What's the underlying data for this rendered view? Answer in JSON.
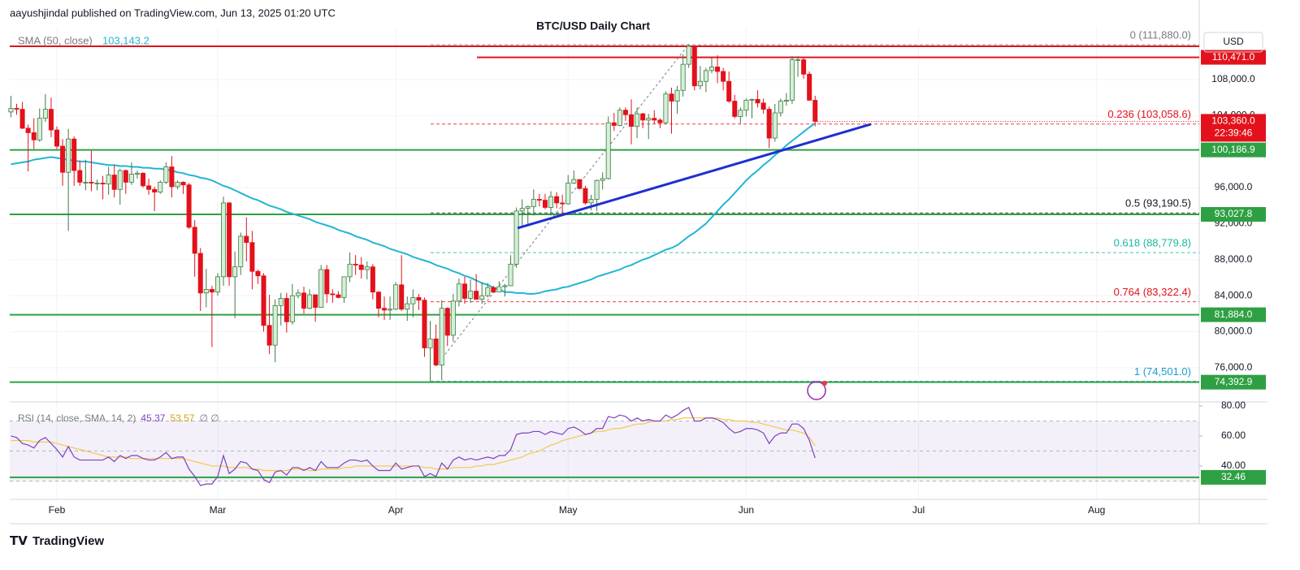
{
  "header": {
    "attribution": "aayushjindal published on TradingView.com, Jun 13, 2025 01:20 UTC",
    "watermark": "TradingView"
  },
  "chart_data": {
    "type": "candlestick",
    "title": "BTC/USD Daily Chart",
    "currency": "USD",
    "up_color": "#d4f0d6",
    "up_stroke": "#3f7a45",
    "down_color": "#e3111b",
    "x_labels": [
      "Feb",
      "Mar",
      "Apr",
      "May",
      "Jun",
      "Jul",
      "Aug"
    ],
    "candles": [
      [
        104400,
        106200,
        103800,
        104800
      ],
      [
        104800,
        105300,
        104100,
        104700
      ],
      [
        104700,
        105500,
        102500,
        102600
      ],
      [
        102600,
        103000,
        97800,
        102100
      ],
      [
        102100,
        103700,
        100300,
        101300
      ],
      [
        101300,
        104800,
        101100,
        103700
      ],
      [
        103700,
        106400,
        103300,
        104700
      ],
      [
        104700,
        106000,
        101600,
        102400
      ],
      [
        102400,
        102800,
        100300,
        100600
      ],
      [
        100600,
        101400,
        96200,
        97700
      ],
      [
        97700,
        102500,
        91200,
        101400
      ],
      [
        101400,
        101700,
        96200,
        97900
      ],
      [
        97900,
        99000,
        96200,
        96600
      ],
      [
        96600,
        99100,
        95700,
        96600
      ],
      [
        96600,
        100100,
        95600,
        96500
      ],
      [
        96500,
        96900,
        95700,
        96500
      ],
      [
        96500,
        97300,
        94700,
        96400
      ],
      [
        96400,
        98300,
        95200,
        97400
      ],
      [
        97400,
        98500,
        94900,
        95800
      ],
      [
        95800,
        98100,
        94100,
        97900
      ],
      [
        97900,
        98000,
        95300,
        96600
      ],
      [
        96600,
        98800,
        96300,
        97500
      ],
      [
        97500,
        97900,
        97000,
        97600
      ],
      [
        97600,
        97700,
        96000,
        96200
      ],
      [
        96200,
        97000,
        95200,
        95800
      ],
      [
        95800,
        96100,
        93400,
        95500
      ],
      [
        95500,
        96800,
        95300,
        96600
      ],
      [
        96600,
        98800,
        96400,
        98300
      ],
      [
        98300,
        99500,
        94900,
        96100
      ],
      [
        96100,
        96800,
        95800,
        96600
      ],
      [
        96600,
        96700,
        95300,
        96300
      ],
      [
        96300,
        96500,
        91400,
        91600
      ],
      [
        91600,
        92400,
        86100,
        88700
      ],
      [
        88700,
        89300,
        82300,
        84300
      ],
      [
        84300,
        87000,
        82700,
        84700
      ],
      [
        84700,
        85100,
        78300,
        84400
      ],
      [
        84400,
        86500,
        84000,
        86100
      ],
      [
        86100,
        95000,
        85100,
        94300
      ],
      [
        94300,
        94400,
        85100,
        86100
      ],
      [
        86100,
        88900,
        81500,
        87200
      ],
      [
        87200,
        91000,
        86300,
        90600
      ],
      [
        90600,
        92700,
        87800,
        89900
      ],
      [
        89900,
        91200,
        84700,
        86700
      ],
      [
        86700,
        86900,
        85300,
        86200
      ],
      [
        86200,
        86500,
        80000,
        80700
      ],
      [
        80700,
        84100,
        77500,
        78500
      ],
      [
        78500,
        83600,
        76600,
        82900
      ],
      [
        82900,
        84300,
        80700,
        83700
      ],
      [
        83700,
        84300,
        79900,
        81100
      ],
      [
        81100,
        85300,
        80800,
        84000
      ],
      [
        84000,
        84700,
        83700,
        84300
      ],
      [
        84300,
        85000,
        82000,
        82600
      ],
      [
        82600,
        84700,
        82500,
        84100
      ],
      [
        84100,
        84100,
        81100,
        82700
      ],
      [
        82700,
        87400,
        82700,
        86900
      ],
      [
        86900,
        87400,
        83200,
        84200
      ],
      [
        84200,
        84700,
        83200,
        84100
      ],
      [
        84100,
        84500,
        83700,
        83800
      ],
      [
        83800,
        86100,
        83200,
        86100
      ],
      [
        86100,
        88800,
        85500,
        87500
      ],
      [
        87500,
        88500,
        86300,
        87400
      ],
      [
        87400,
        88300,
        85900,
        86900
      ],
      [
        86900,
        87800,
        85800,
        87200
      ],
      [
        87200,
        87500,
        83600,
        84400
      ],
      [
        84400,
        84500,
        81600,
        82600
      ],
      [
        82600,
        83900,
        81300,
        82400
      ],
      [
        82400,
        83900,
        81300,
        82500
      ],
      [
        82500,
        85500,
        82400,
        85200
      ],
      [
        85200,
        88500,
        82300,
        82500
      ],
      [
        82500,
        83900,
        81200,
        83100
      ],
      [
        83100,
        84700,
        81600,
        83800
      ],
      [
        83800,
        84200,
        82400,
        83500
      ],
      [
        83500,
        83800,
        77200,
        78200
      ],
      [
        78200,
        81200,
        74500,
        79200
      ],
      [
        79200,
        80800,
        76200,
        76300
      ],
      [
        76300,
        83500,
        74600,
        82600
      ],
      [
        82600,
        82700,
        78400,
        79600
      ],
      [
        79600,
        84200,
        78900,
        83400
      ],
      [
        83400,
        85900,
        82800,
        85300
      ],
      [
        85300,
        86100,
        83100,
        83700
      ],
      [
        83700,
        85800,
        83200,
        84500
      ],
      [
        84500,
        86400,
        83600,
        83600
      ],
      [
        83600,
        85500,
        83100,
        84000
      ],
      [
        84000,
        85400,
        83800,
        84900
      ],
      [
        84900,
        85100,
        84300,
        84400
      ],
      [
        84400,
        85600,
        84400,
        85000
      ],
      [
        85000,
        85300,
        83900,
        85100
      ],
      [
        85100,
        88500,
        85100,
        87500
      ],
      [
        87500,
        93800,
        87100,
        93400
      ],
      [
        93400,
        94700,
        91700,
        93700
      ],
      [
        93700,
        94000,
        91700,
        93900
      ],
      [
        93900,
        95800,
        92900,
        94700
      ],
      [
        94700,
        95300,
        93900,
        94600
      ],
      [
        94600,
        95300,
        93600,
        93800
      ],
      [
        93800,
        95600,
        92900,
        95000
      ],
      [
        95000,
        95500,
        93700,
        94300
      ],
      [
        94300,
        95200,
        92900,
        94200
      ],
      [
        94200,
        97400,
        94100,
        96500
      ],
      [
        96500,
        97900,
        96400,
        96900
      ],
      [
        96900,
        96900,
        95800,
        95900
      ],
      [
        95900,
        96200,
        94100,
        94300
      ],
      [
        94300,
        95200,
        93500,
        94700
      ],
      [
        94700,
        96900,
        93400,
        96800
      ],
      [
        96800,
        97700,
        95800,
        97000
      ],
      [
        97000,
        103900,
        96900,
        103200
      ],
      [
        103200,
        104300,
        102300,
        102900
      ],
      [
        102900,
        104900,
        102800,
        104600
      ],
      [
        104600,
        104900,
        103400,
        104100
      ],
      [
        104100,
        105800,
        100800,
        102800
      ],
      [
        102800,
        104900,
        101500,
        104200
      ],
      [
        104200,
        104300,
        102600,
        103500
      ],
      [
        103500,
        104200,
        101400,
        103700
      ],
      [
        103700,
        104600,
        103100,
        103500
      ],
      [
        103500,
        103700,
        102600,
        103200
      ],
      [
        103200,
        106700,
        103100,
        106400
      ],
      [
        106400,
        107100,
        102000,
        105600
      ],
      [
        105600,
        107300,
        104200,
        106800
      ],
      [
        106800,
        110800,
        106100,
        109700
      ],
      [
        109700,
        111900,
        109300,
        111700
      ],
      [
        111700,
        111800,
        106800,
        107300
      ],
      [
        107300,
        109500,
        106900,
        107800
      ],
      [
        107800,
        109300,
        106600,
        109000
      ],
      [
        109000,
        110400,
        108700,
        109400
      ],
      [
        109400,
        110700,
        107600,
        108900
      ],
      [
        108900,
        109300,
        106800,
        107800
      ],
      [
        107800,
        108900,
        105400,
        105600
      ],
      [
        105600,
        106300,
        103700,
        103900
      ],
      [
        103900,
        104900,
        103100,
        104600
      ],
      [
        104600,
        105900,
        103900,
        105700
      ],
      [
        105700,
        105900,
        103700,
        105800
      ],
      [
        105800,
        106800,
        104900,
        105400
      ],
      [
        105400,
        105900,
        104200,
        104700
      ],
      [
        104700,
        105000,
        100400,
        101500
      ],
      [
        101500,
        105300,
        101100,
        104300
      ],
      [
        104300,
        105900,
        103900,
        105600
      ],
      [
        105600,
        106500,
        105100,
        105700
      ],
      [
        105700,
        110600,
        105300,
        110200
      ],
      [
        110200,
        110600,
        108300,
        110200
      ],
      [
        110200,
        110400,
        108100,
        108600
      ],
      [
        108600,
        108900,
        105700,
        105700
      ],
      [
        105700,
        106200,
        102800,
        103360
      ]
    ],
    "close_label": "103,360.0",
    "countdown": "22:39:46",
    "ylim": [
      72200,
      113860
    ],
    "yticks": [
      {
        "value": 76000,
        "label": "76,000.0"
      },
      {
        "value": 80000,
        "label": "80,000.0"
      },
      {
        "value": 84000,
        "label": "84,000.0"
      },
      {
        "value": 88000,
        "label": "88,000.0"
      },
      {
        "value": 92000,
        "label": "92,000.0"
      },
      {
        "value": 96000,
        "label": "96,000.0"
      },
      {
        "value": 104000,
        "label": "104,000.0"
      },
      {
        "value": 108000,
        "label": "108,000.0"
      }
    ],
    "grid": true,
    "sma": {
      "name": "SMA (50, close)",
      "color": "#22b5d4",
      "value_label": "103,143.2",
      "values": [
        98600,
        98700,
        98800,
        98900,
        99100,
        99200,
        99300,
        99400,
        99300,
        99200,
        99100,
        99000,
        98900,
        98900,
        98800,
        98700,
        98600,
        98500,
        98500,
        98400,
        98400,
        98300,
        98300,
        98200,
        98200,
        98100,
        98100,
        98000,
        97900,
        97700,
        97600,
        97400,
        97300,
        97100,
        97000,
        96800,
        96500,
        96200,
        96000,
        95700,
        95400,
        95100,
        94800,
        94600,
        94300,
        94000,
        93800,
        93600,
        93300,
        93100,
        92900,
        92700,
        92500,
        92200,
        92000,
        91800,
        91600,
        91300,
        91100,
        90900,
        90600,
        90400,
        90200,
        89900,
        89700,
        89500,
        89200,
        89000,
        88800,
        88600,
        88300,
        88100,
        87900,
        87700,
        87400,
        87200,
        87000,
        86700,
        86500,
        86200,
        86000,
        85700,
        85400,
        85200,
        84900,
        84700,
        84400,
        84400,
        84300,
        84300,
        84200,
        84200,
        84300,
        84500,
        84600,
        84700,
        84900,
        85000,
        85200,
        85400,
        85600,
        85800,
        86100,
        86300,
        86500,
        86700,
        86900,
        87200,
        87400,
        87700,
        88000,
        88200,
        88500,
        88800,
        89100,
        89300,
        89600,
        90100,
        90600,
        91000,
        91500,
        92000,
        92700,
        93400,
        94100,
        94700,
        95400,
        96100,
        96800,
        97400,
        97900,
        98500,
        99000,
        99600,
        100100,
        100700,
        101200,
        101700,
        102200,
        102700,
        103143.2
      ]
    },
    "levels": [
      {
        "value": 100186.9,
        "label": "100,186.9",
        "color": "#2ea043"
      },
      {
        "value": 93027.8,
        "label": "93,027.8",
        "color": "#2ea043"
      },
      {
        "value": 81884.0,
        "label": "81,884.0",
        "color": "#2ea043"
      },
      {
        "value": 74392.9,
        "label": "74,392.9",
        "color": "#2ea043"
      }
    ],
    "resistance": [
      {
        "value": 111700,
        "color": "#e3111b"
      },
      {
        "value": 110471,
        "label": "110,471.0",
        "color": "#e3111b"
      }
    ],
    "fib": [
      {
        "value": 111880,
        "label": "0 (111,880.0)",
        "color": "#787b86"
      },
      {
        "value": 103058.6,
        "label": "0.236 (103,058.6)",
        "color": "#e3111b"
      },
      {
        "value": 93190.5,
        "label": "0.5 (93,190.5)",
        "color": "#131722"
      },
      {
        "value": 88779.8,
        "label": "0.618 (88,779.8)",
        "color": "#1bb8a0"
      },
      {
        "value": 83322.4,
        "label": "0.764 (83,322.4)",
        "color": "#e3111b"
      },
      {
        "value": 74501.0,
        "label": "1 (74,501.0)",
        "color": "#1a9ad6"
      }
    ],
    "trendline": {
      "values": [
        91500,
        103040
      ],
      "color": "#1f2fd0"
    },
    "rsi": {
      "title": "RSI (14, close, SMA, 14, 2)",
      "color": "#7e3fbf",
      "ma_color": "#f2c94c",
      "extra": "∅ ∅",
      "ylim": [
        17.8,
        82.7
      ],
      "yticks": [
        {
          "value": 40,
          "label": "40.00"
        },
        {
          "value": 60,
          "label": "60.00"
        },
        {
          "value": 80,
          "label": "80.00"
        }
      ],
      "bands": [
        70,
        50,
        30
      ],
      "levels": [
        {
          "value": 32.46,
          "color": "#2ea043"
        }
      ],
      "values": [
        60,
        59,
        55,
        54,
        52,
        57,
        59,
        55,
        51,
        46,
        53,
        46,
        44,
        44,
        44,
        44,
        44,
        46,
        43,
        47,
        45,
        47,
        47,
        45,
        44,
        44,
        46,
        49,
        45,
        46,
        46,
        38,
        33,
        27,
        28,
        28,
        33,
        47,
        35,
        38,
        43,
        42,
        38,
        37,
        31,
        29,
        36,
        37,
        34,
        39,
        39,
        37,
        39,
        37,
        43,
        39,
        39,
        39,
        42,
        44,
        44,
        43,
        44,
        40,
        37,
        37,
        37,
        42,
        38,
        39,
        40,
        40,
        33,
        35,
        33,
        42,
        38,
        44,
        46,
        44,
        45,
        44,
        45,
        46,
        45,
        47,
        47,
        51,
        61,
        62,
        62,
        63,
        63,
        61,
        63,
        62,
        61,
        65,
        66,
        64,
        61,
        62,
        65,
        65,
        73,
        72,
        74,
        73,
        70,
        72,
        70,
        71,
        70,
        70,
        74,
        72,
        74,
        77,
        79,
        70,
        70,
        72,
        72,
        71,
        69,
        65,
        62,
        63,
        65,
        65,
        64,
        62,
        55,
        60,
        62,
        62,
        68,
        68,
        65,
        57,
        45.37
      ],
      "ma_values": [
        57,
        57,
        57,
        57,
        56,
        56,
        56,
        56,
        55,
        54,
        53,
        52,
        51,
        50,
        49,
        48,
        47,
        46,
        46,
        46,
        46,
        45,
        45,
        45,
        45,
        45,
        45,
        45,
        45,
        45,
        45,
        44,
        43,
        42,
        41,
        40,
        40,
        40,
        39,
        39,
        39,
        39,
        38,
        38,
        37,
        37,
        37,
        37,
        37,
        38,
        38,
        38,
        37,
        37,
        38,
        38,
        38,
        38,
        39,
        39,
        40,
        40,
        40,
        40,
        40,
        40,
        40,
        40,
        40,
        40,
        40,
        40,
        39,
        39,
        38,
        38,
        38,
        39,
        39,
        39,
        39,
        40,
        40,
        41,
        41,
        42,
        43,
        44,
        45,
        46,
        48,
        49,
        50,
        52,
        54,
        55,
        57,
        58,
        59,
        60,
        61,
        62,
        63,
        63,
        64,
        65,
        65,
        66,
        67,
        68,
        68,
        69,
        70,
        70,
        70,
        71,
        71,
        72,
        72,
        72,
        72,
        72,
        72,
        72,
        71,
        71,
        70,
        70,
        70,
        69,
        69,
        68,
        67,
        66,
        65,
        64,
        64,
        63,
        62,
        59,
        53.57
      ]
    }
  }
}
